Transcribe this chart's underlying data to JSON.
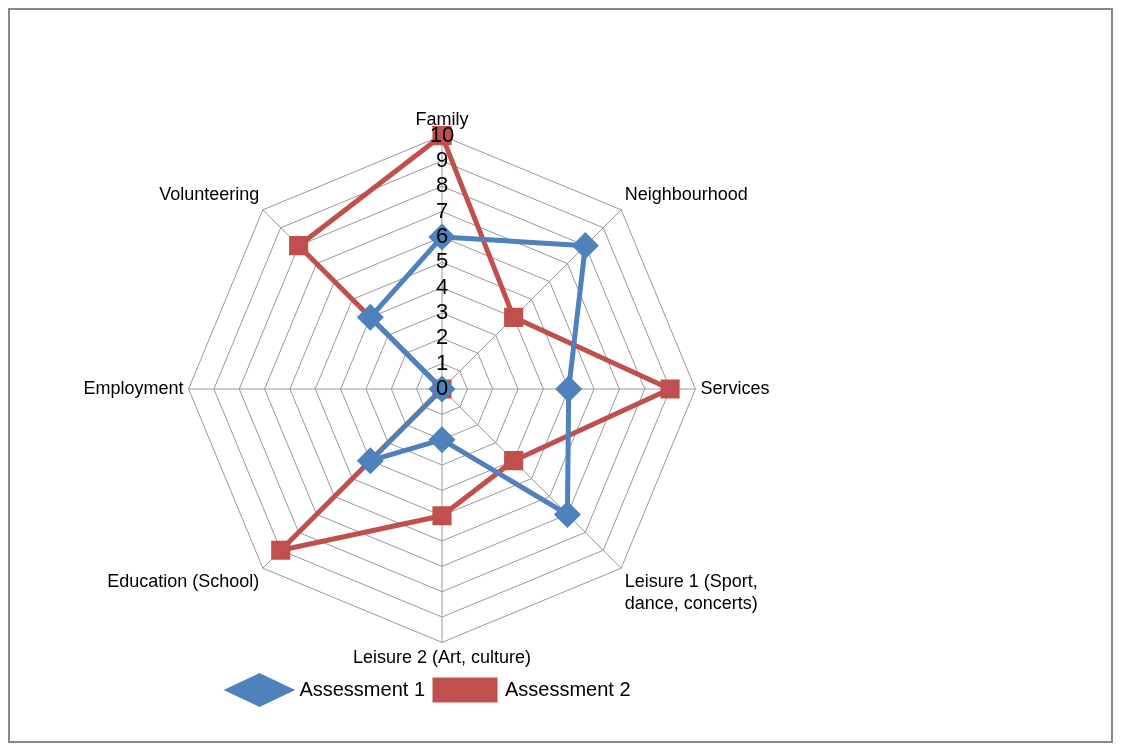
{
  "chart_data": {
    "type": "radar",
    "categories": [
      "Family",
      "Neighbourhood",
      "Services",
      "Leisure 1 (Sport, dance, concerts)",
      "Leisure 2 (Art, culture)",
      "Education (School)",
      "Employment",
      "Volunteering"
    ],
    "series": [
      {
        "name": "Assessment 1",
        "color": "#4f81bd",
        "marker": "diamond",
        "values": [
          6,
          8,
          5,
          7,
          2,
          4,
          0,
          4
        ]
      },
      {
        "name": "Assessment 2",
        "color": "#c0504d",
        "marker": "square",
        "values": [
          10,
          4,
          9,
          4,
          5,
          9,
          0,
          8
        ]
      }
    ],
    "ylim": [
      0,
      10
    ],
    "yticks": [
      0,
      1,
      2,
      3,
      4,
      5,
      6,
      7,
      8,
      9,
      10
    ],
    "grid": true,
    "legend": "bottom"
  }
}
